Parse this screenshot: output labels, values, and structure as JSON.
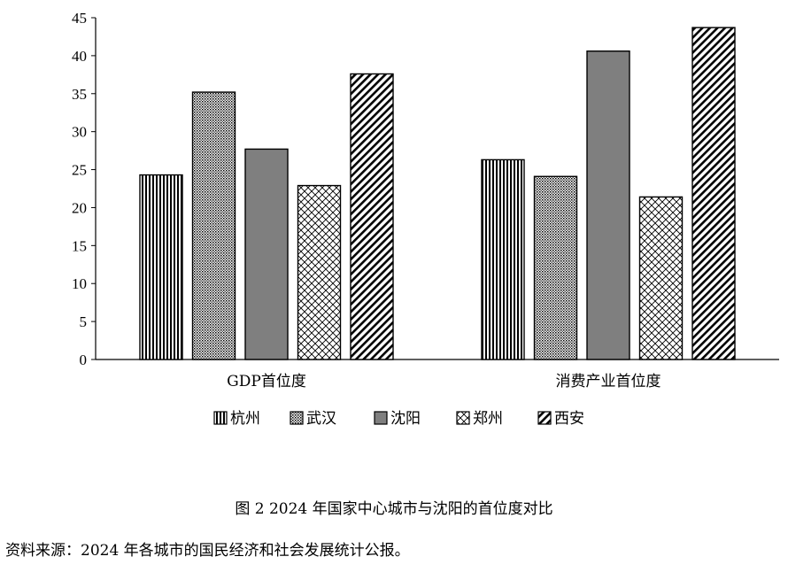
{
  "chart_data": {
    "type": "bar",
    "categories": [
      "GDP首位度",
      "消费产业首位度"
    ],
    "series": [
      {
        "name": "杭州",
        "values": [
          24.3,
          26.3
        ],
        "pattern": "vertical-lines"
      },
      {
        "name": "武汉",
        "values": [
          35.2,
          24.1
        ],
        "pattern": "dots"
      },
      {
        "name": "沈阳",
        "values": [
          27.7,
          40.6
        ],
        "pattern": "solid-gray"
      },
      {
        "name": "郑州",
        "values": [
          22.9,
          21.4
        ],
        "pattern": "crosshatch"
      },
      {
        "name": "西安",
        "values": [
          37.6,
          43.7
        ],
        "pattern": "diagonal-lines"
      }
    ],
    "yticks": [
      0,
      5,
      10,
      15,
      20,
      25,
      30,
      35,
      40,
      45
    ],
    "ylim": [
      0,
      45
    ],
    "legend_position": "bottom",
    "grid": false,
    "colors": {
      "solid": "#7f7f7f",
      "stroke": "#000000"
    }
  },
  "caption": "图 2 2024 年国家中心城市与沈阳的首位度对比",
  "source_note": "资料来源：2024 年各城市的国民经济和社会发展统计公报。"
}
